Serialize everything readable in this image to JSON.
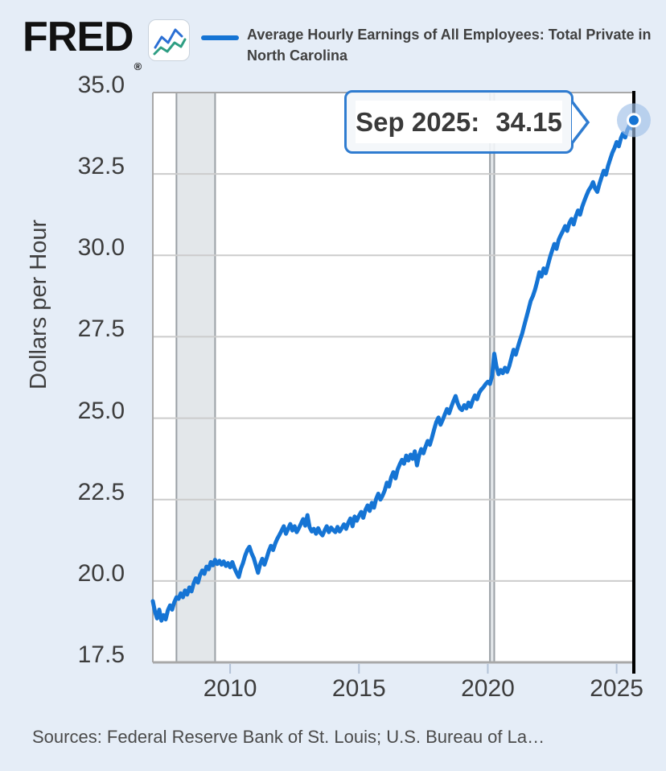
{
  "header": {
    "logo": "FRED",
    "logo_reg": "®",
    "series_title": "Average Hourly Earnings of All Employees: Total Private in North Carolina"
  },
  "tooltip": {
    "date_label": "Sep 2025:",
    "value": "34.15"
  },
  "footer": {
    "sources": "Sources: Federal Reserve Bank of St. Louis; U.S. Bureau of La…"
  },
  "colors": {
    "page_background": "#e5edf7",
    "plot_background": "#ffffff",
    "line": "#1574d4",
    "gridline": "#cccccc",
    "plot_border": "#a8a8a8",
    "recession_band_fill": "#e3e7ea",
    "recession_band_edge": "#9aa0a5",
    "cursor_line": "#000000",
    "halo": "#9fc0e8",
    "tick_mark": "#b3c2d6",
    "tooltip_border": "#2f7cd0",
    "axis_text": "#3d3d3d"
  },
  "icons": {
    "fred_sparkline_icon": "dual-zigzag-line-chart",
    "tooltip_arrow_icon": "chevron-right"
  },
  "chart_data": {
    "type": "line",
    "title": "Average Hourly Earnings of All Employees: Total Private in North Carolina",
    "xlabel": "",
    "ylabel": "Dollars per Hour",
    "ylim": [
      17.5,
      35.0
    ],
    "xlim_years": [
      2007.0,
      2025.667
    ],
    "y_ticks": [
      35.0,
      32.5,
      30.0,
      27.5,
      25.0,
      22.5,
      20.0,
      17.5
    ],
    "x_ticks": [
      2010,
      2015,
      2020,
      2025
    ],
    "grid": true,
    "legend_position": "top",
    "recession_bands": [
      {
        "start": 2007.917,
        "end": 2009.417
      },
      {
        "start": 2020.083,
        "end": 2020.25
      }
    ],
    "series": [
      {
        "name": "Average Hourly Earnings of All Employees: Total Private in North Carolina",
        "frequency": "monthly",
        "start_year": 2007,
        "start_month": 1,
        "end_label": "Sep 2025",
        "values": [
          19.38,
          19.05,
          18.85,
          19.12,
          18.78,
          18.95,
          18.82,
          19.1,
          19.25,
          19.12,
          19.35,
          19.5,
          19.45,
          19.62,
          19.5,
          19.71,
          19.58,
          19.8,
          19.68,
          19.92,
          20.08,
          19.95,
          20.18,
          20.32,
          20.22,
          20.44,
          20.36,
          20.58,
          20.48,
          20.65,
          20.52,
          20.62,
          20.5,
          20.6,
          20.46,
          20.55,
          20.42,
          20.58,
          20.4,
          20.25,
          20.12,
          20.38,
          20.55,
          20.78,
          20.95,
          21.05,
          20.85,
          20.7,
          20.48,
          20.25,
          20.52,
          20.68,
          20.5,
          20.7,
          20.92,
          21.08,
          20.95,
          21.15,
          21.3,
          21.42,
          21.55,
          21.68,
          21.45,
          21.6,
          21.75,
          21.55,
          21.68,
          21.5,
          21.62,
          21.76,
          21.9,
          21.7,
          22.02,
          21.65,
          21.52,
          21.6,
          21.45,
          21.62,
          21.48,
          21.4,
          21.55,
          21.68,
          21.5,
          21.64,
          21.56,
          21.5,
          21.66,
          21.52,
          21.62,
          21.74,
          21.6,
          21.78,
          21.92,
          21.68,
          21.98,
          21.85,
          22.0,
          22.12,
          21.94,
          22.18,
          22.32,
          22.15,
          22.4,
          22.25,
          22.52,
          22.68,
          22.5,
          22.62,
          22.78,
          23.02,
          22.9,
          23.18,
          23.34,
          23.15,
          23.42,
          23.58,
          23.72,
          23.6,
          23.85,
          23.7,
          23.88,
          23.75,
          23.98,
          23.55,
          23.85,
          24.05,
          23.92,
          24.12,
          24.3,
          24.18,
          24.4,
          24.65,
          24.88,
          25.02,
          24.8,
          24.95,
          25.12,
          25.28,
          25.15,
          25.35,
          25.52,
          25.68,
          25.45,
          25.3,
          25.25,
          25.4,
          25.3,
          25.48,
          25.35,
          25.55,
          25.7,
          25.58,
          25.78,
          25.88,
          25.95,
          26.05,
          26.12,
          26.05,
          26.3,
          26.98,
          26.6,
          26.35,
          26.48,
          26.38,
          26.55,
          26.42,
          26.6,
          26.85,
          27.1,
          26.95,
          27.18,
          27.4,
          27.6,
          27.85,
          28.1,
          28.35,
          28.6,
          28.75,
          28.95,
          29.2,
          29.48,
          29.35,
          29.6,
          29.45,
          29.7,
          29.95,
          30.15,
          30.35,
          30.2,
          30.48,
          30.62,
          30.75,
          30.9,
          30.75,
          31.0,
          31.12,
          30.95,
          31.2,
          31.38,
          31.25,
          31.5,
          31.68,
          31.85,
          32.0,
          32.1,
          32.25,
          32.05,
          31.95,
          32.2,
          32.4,
          32.6,
          32.48,
          32.75,
          32.95,
          33.15,
          33.3,
          33.48,
          33.35,
          33.6,
          33.75,
          33.62,
          33.85,
          34.0,
          33.9,
          34.15
        ]
      }
    ],
    "last_point": {
      "date": "Sep 2025",
      "value": 34.15
    }
  }
}
